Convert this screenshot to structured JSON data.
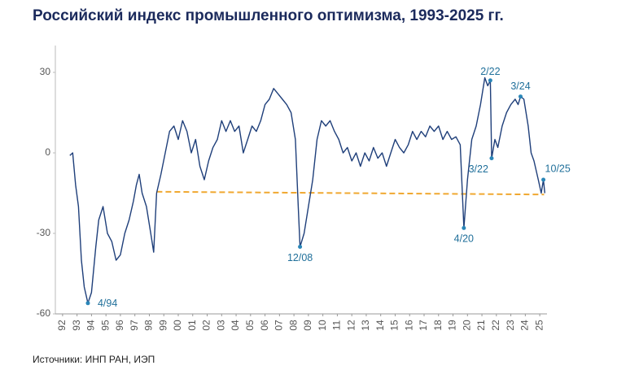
{
  "chart_data": {
    "type": "line",
    "title": "Российский индекс промышленного оптимизма, 1993-2025 гг.",
    "source": "Источники: ИНП РАН, ИЭП",
    "xlim": [
      1992,
      2026
    ],
    "ylim": [
      -60,
      40
    ],
    "yticks": [
      -60,
      -30,
      0,
      30
    ],
    "xticks": [
      {
        "value": 1992.5,
        "label": "92"
      },
      {
        "value": 1993.5,
        "label": "93"
      },
      {
        "value": 1994.5,
        "label": "94"
      },
      {
        "value": 1995.5,
        "label": "95"
      },
      {
        "value": 1996.5,
        "label": "96"
      },
      {
        "value": 1997.5,
        "label": "97"
      },
      {
        "value": 1998.5,
        "label": "98"
      },
      {
        "value": 1999.5,
        "label": "99"
      },
      {
        "value": 2000.5,
        "label": "00"
      },
      {
        "value": 2001.5,
        "label": "01"
      },
      {
        "value": 2002.5,
        "label": "02"
      },
      {
        "value": 2003.5,
        "label": "03"
      },
      {
        "value": 2004.5,
        "label": "04"
      },
      {
        "value": 2005.5,
        "label": "05"
      },
      {
        "value": 2006.5,
        "label": "06"
      },
      {
        "value": 2007.5,
        "label": "07"
      },
      {
        "value": 2008.5,
        "label": "08"
      },
      {
        "value": 2009.5,
        "label": "09"
      },
      {
        "value": 2010.5,
        "label": "10"
      },
      {
        "value": 2011.5,
        "label": "11"
      },
      {
        "value": 2012.5,
        "label": "12"
      },
      {
        "value": 2013.5,
        "label": "13"
      },
      {
        "value": 2014.5,
        "label": "14"
      },
      {
        "value": 2015.5,
        "label": "15"
      },
      {
        "value": 2016.5,
        "label": "16"
      },
      {
        "value": 2017.5,
        "label": "17"
      },
      {
        "value": 2018.5,
        "label": "18"
      },
      {
        "value": 2019.5,
        "label": "19"
      },
      {
        "value": 2020.5,
        "label": "20"
      },
      {
        "value": 2021.5,
        "label": "21"
      },
      {
        "value": 2022.5,
        "label": "22"
      },
      {
        "value": 2023.5,
        "label": "23"
      },
      {
        "value": 2024.5,
        "label": "24"
      },
      {
        "value": 2025.5,
        "label": "25"
      }
    ],
    "series": [
      {
        "color": "#1f3f7a",
        "x": [
          1993.0,
          1993.2,
          1993.4,
          1993.6,
          1993.8,
          1994.0,
          1994.25,
          1994.5,
          1994.8,
          1995.0,
          1995.3,
          1995.6,
          1995.9,
          1996.2,
          1996.5,
          1996.8,
          1997.1,
          1997.4,
          1997.6,
          1997.8,
          1998.0,
          1998.3,
          1998.6,
          1998.8,
          1999.0,
          1999.3,
          1999.6,
          1999.9,
          2000.2,
          2000.5,
          2000.8,
          2001.1,
          2001.4,
          2001.7,
          2002.0,
          2002.3,
          2002.6,
          2002.9,
          2003.2,
          2003.5,
          2003.8,
          2004.1,
          2004.4,
          2004.7,
          2005.0,
          2005.3,
          2005.6,
          2005.9,
          2006.2,
          2006.5,
          2006.8,
          2007.1,
          2007.4,
          2007.7,
          2008.0,
          2008.3,
          2008.6,
          2008.8,
          2008.92,
          2009.2,
          2009.5,
          2009.8,
          2010.1,
          2010.4,
          2010.7,
          2011.0,
          2011.3,
          2011.6,
          2011.9,
          2012.2,
          2012.5,
          2012.8,
          2013.1,
          2013.4,
          2013.7,
          2014.0,
          2014.3,
          2014.6,
          2014.9,
          2015.2,
          2015.5,
          2015.8,
          2016.1,
          2016.4,
          2016.7,
          2017.0,
          2017.3,
          2017.6,
          2017.9,
          2018.2,
          2018.5,
          2018.8,
          2019.1,
          2019.4,
          2019.7,
          2020.0,
          2020.25,
          2020.5,
          2020.8,
          2021.1,
          2021.4,
          2021.7,
          2021.9,
          2022.08,
          2022.17,
          2022.4,
          2022.6,
          2022.9,
          2023.2,
          2023.5,
          2023.8,
          2024.0,
          2024.17,
          2024.4,
          2024.7,
          2024.9,
          2025.1,
          2025.4,
          2025.6,
          2025.75,
          2025.85
        ],
        "values": [
          -1,
          0,
          -12,
          -20,
          -40,
          -50,
          -56,
          -52,
          -35,
          -25,
          -20,
          -30,
          -33,
          -40,
          -38,
          -30,
          -25,
          -18,
          -12,
          -8,
          -15,
          -20,
          -30,
          -37,
          -15,
          -8,
          0,
          8,
          10,
          5,
          12,
          8,
          0,
          5,
          -5,
          -10,
          -3,
          2,
          5,
          12,
          8,
          12,
          8,
          10,
          0,
          5,
          10,
          8,
          12,
          18,
          20,
          24,
          22,
          20,
          18,
          15,
          5,
          -20,
          -35,
          -30,
          -20,
          -10,
          5,
          12,
          10,
          12,
          8,
          5,
          0,
          2,
          -3,
          0,
          -5,
          0,
          -3,
          2,
          -2,
          0,
          -5,
          0,
          5,
          2,
          0,
          3,
          8,
          5,
          8,
          6,
          10,
          8,
          10,
          5,
          8,
          5,
          6,
          3,
          -28,
          -10,
          5,
          10,
          18,
          28,
          25,
          27,
          -2,
          5,
          2,
          10,
          15,
          18,
          20,
          18,
          21,
          20,
          10,
          0,
          -3,
          -10,
          -15,
          -10,
          -15
        ]
      }
    ],
    "trend": {
      "color": "#f0a830",
      "x": [
        1999,
        2025.8
      ],
      "values": [
        -14.5,
        -15.5
      ]
    },
    "annotations": [
      {
        "label": "4/94",
        "x": 1994.25,
        "value": -56
      },
      {
        "label": "12/08",
        "x": 2008.92,
        "value": -35
      },
      {
        "label": "4/20",
        "x": 2020.25,
        "value": -28
      },
      {
        "label": "2/22",
        "x": 2022.08,
        "value": 27
      },
      {
        "label": "3/22",
        "x": 2022.17,
        "value": -2
      },
      {
        "label": "3/24",
        "x": 2024.17,
        "value": 21
      },
      {
        "label": "10/25",
        "x": 2025.75,
        "value": -10
      }
    ],
    "annotation_color": "#2a86b8"
  }
}
